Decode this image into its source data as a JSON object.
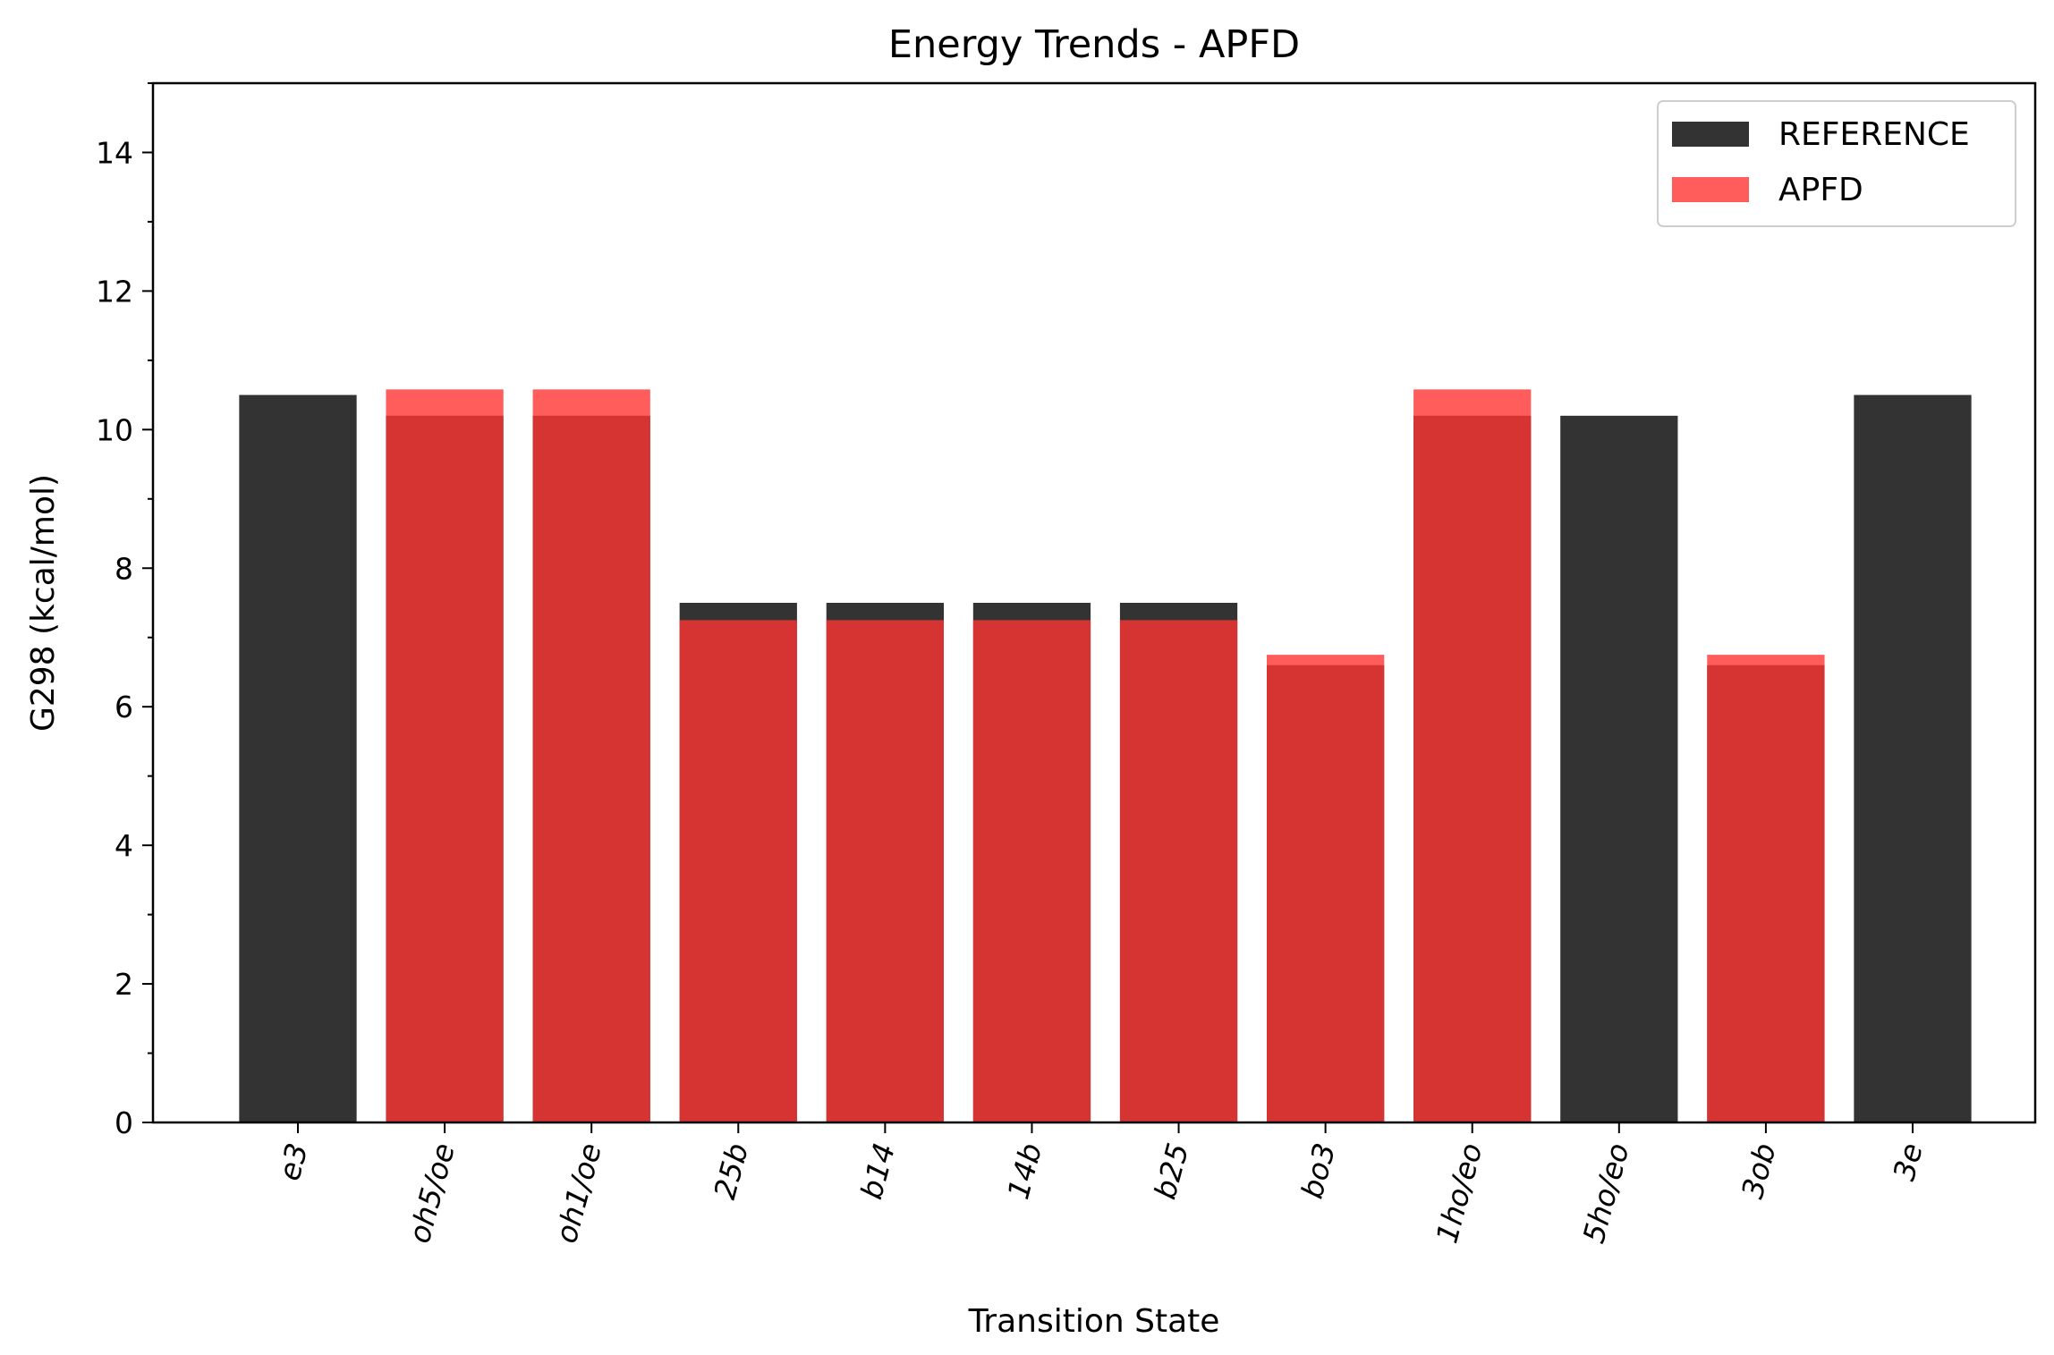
{
  "chart_data": {
    "type": "bar",
    "title": "Energy Trends - APFD",
    "xlabel": "Transition State",
    "ylabel": "G298 (kcal/mol)",
    "ylim": [
      0,
      15
    ],
    "yticks": [
      0,
      2,
      4,
      6,
      8,
      10,
      12,
      14
    ],
    "grid": false,
    "legend_position": "top-right",
    "categories": [
      "e3",
      "oh5/oe",
      "oh1/oe",
      "25b",
      "b14",
      "14b",
      "b25",
      "bo3",
      "1ho/eo",
      "5ho/eo",
      "3ob",
      "3e"
    ],
    "series": [
      {
        "name": "REFERENCE",
        "color": "#333333",
        "values": [
          10.5,
          10.2,
          10.2,
          7.5,
          7.5,
          7.5,
          7.5,
          6.6,
          10.2,
          10.2,
          6.6,
          10.5
        ]
      },
      {
        "name": "APFD",
        "color": "#ff3333",
        "values": [
          null,
          10.58,
          10.58,
          7.25,
          7.25,
          7.25,
          7.25,
          6.75,
          10.58,
          null,
          6.75,
          null
        ]
      }
    ]
  }
}
